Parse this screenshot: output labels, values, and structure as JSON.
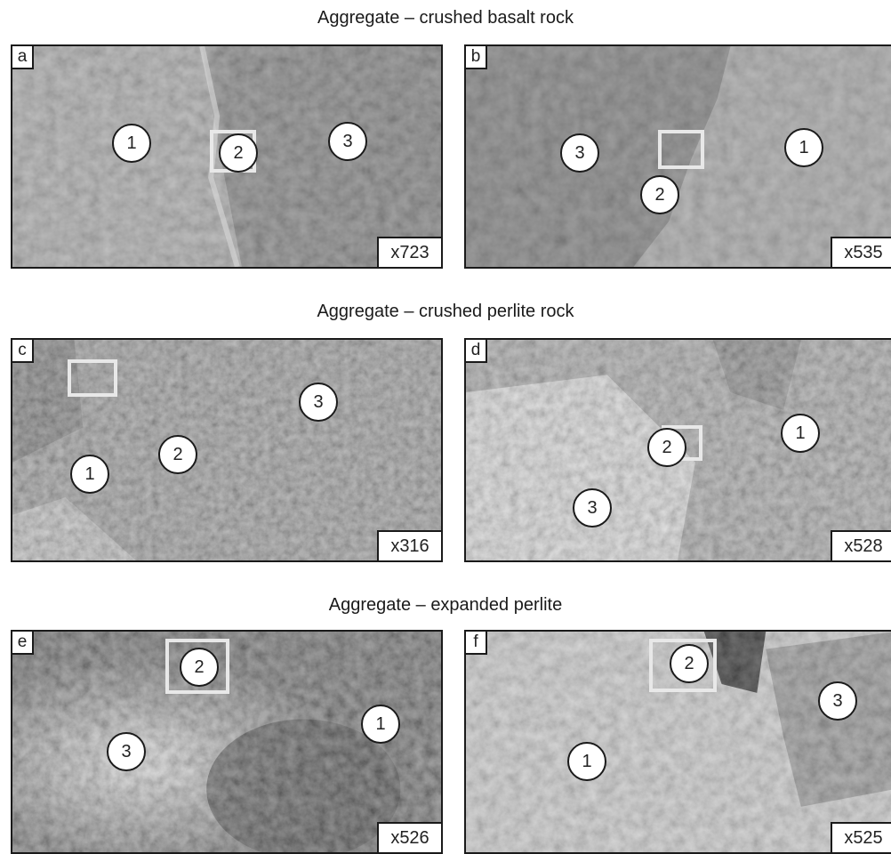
{
  "rows": [
    {
      "title": "Aggregate – crushed basalt rock"
    },
    {
      "title": "Aggregate – crushed perlite rock"
    },
    {
      "title": "Aggregate – expanded perlite"
    }
  ],
  "panels": [
    {
      "letter": "a",
      "magnification": "x723",
      "zones": [
        "1",
        "2",
        "3"
      ]
    },
    {
      "letter": "b",
      "magnification": "x535",
      "zones": [
        "3",
        "2",
        "1"
      ]
    },
    {
      "letter": "c",
      "magnification": "x316",
      "zones": [
        "3",
        "2",
        "1"
      ]
    },
    {
      "letter": "d",
      "magnification": "x528",
      "zones": [
        "2",
        "1",
        "3"
      ]
    },
    {
      "letter": "e",
      "magnification": "x526",
      "zones": [
        "2",
        "1",
        "3"
      ]
    },
    {
      "letter": "f",
      "magnification": "x525",
      "zones": [
        "2",
        "3",
        "1"
      ]
    }
  ]
}
